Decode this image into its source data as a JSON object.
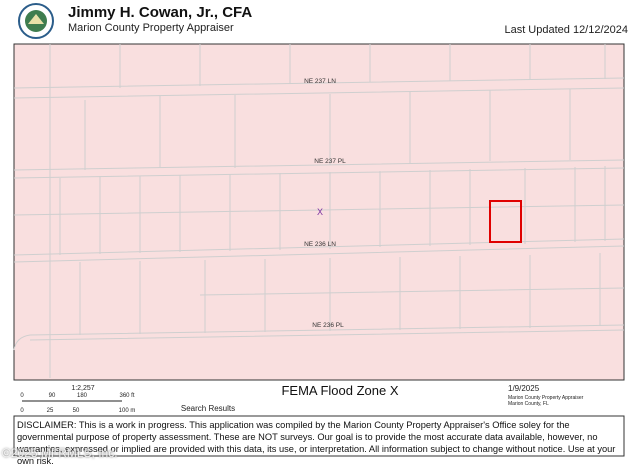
{
  "header": {
    "title": "Jimmy H. Cowan, Jr., CFA",
    "subtitle": "Marion County Property Appraiser",
    "updated": "Last Updated 12/12/2024"
  },
  "map": {
    "streets": [
      "NE 237 LN",
      "NE 237 PL",
      "NE 236 LN",
      "NE 236 PL"
    ],
    "marker": "X"
  },
  "footer": {
    "scale": "1:2,257",
    "feet_ticks": [
      "0",
      "90",
      "180",
      "360 ft"
    ],
    "meter_ticks": [
      "0",
      "25",
      "50",
      "100 m"
    ],
    "search": "Search Results",
    "map_title": "FEMA Flood Zone X",
    "date": "1/9/2025",
    "credit1": "Marion County Property Appraiser",
    "credit2": "Marion County, FL"
  },
  "disclaimer": "DISCLAIMER: This is a work in progress. This application was compiled by the Marion County Property Appraiser's Office soley for the governmental purpose of property assessment. These are NOT surveys. Our goal is to provide the most accurate data available, however, no warranties, expressed or implied are provided with this data, its use, or interpretation. All information subject to change without notice. Use at your own risk.",
  "watermark": "©2025 MFRMLS, Inc."
}
